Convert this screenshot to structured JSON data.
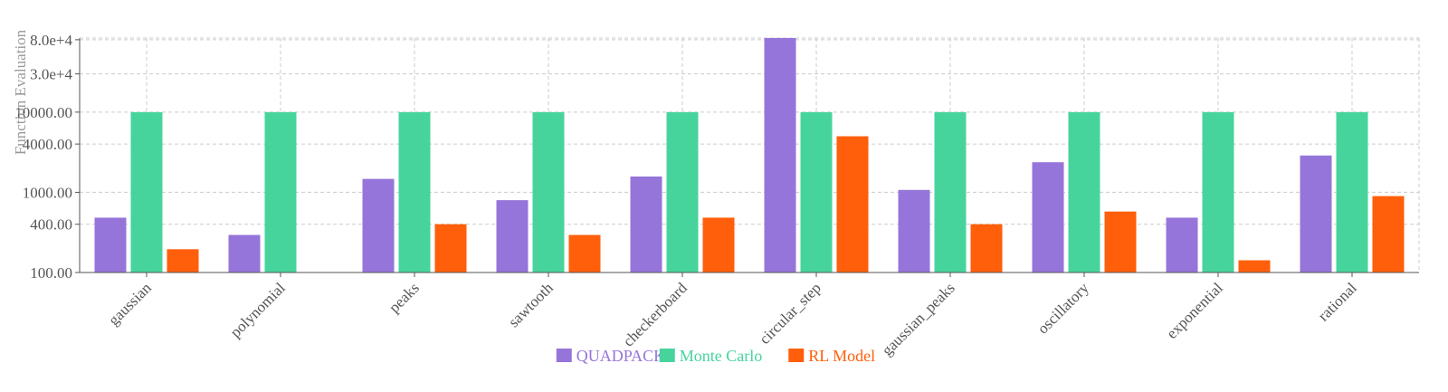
{
  "chart_data": {
    "type": "bar",
    "title": "",
    "xlabel": "",
    "ylabel": "Function Evaluation",
    "y_scale": "log",
    "ylim": [
      100,
      84000
    ],
    "y_ticks": [
      100,
      400,
      1000,
      4000,
      10000,
      30000,
      80000
    ],
    "y_tick_labels": [
      "100.00",
      "400.00",
      "1000.00",
      "4000.00",
      "10000.00",
      "3.0e+4",
      "8.0e+4"
    ],
    "grid": true,
    "legend_position": "bottom-center",
    "categories": [
      "gaussian",
      "polynomial",
      "peaks",
      "sawtooth",
      "checkerboard",
      "circular_step",
      "gaussian_peaks",
      "oscillatory",
      "exponential",
      "rational"
    ],
    "series": [
      {
        "name": "QUADPACK",
        "color": "#9575d9",
        "values": [
          483,
          294,
          1470,
          798,
          1575,
          84000,
          1071,
          2373,
          483,
          2877
        ]
      },
      {
        "name": "Monte Carlo",
        "color": "#47d49c",
        "values": [
          10000,
          10000,
          10000,
          10000,
          10000,
          10000,
          10000,
          10000,
          10000,
          10000
        ]
      },
      {
        "name": "RL Model",
        "color": "#ff5f0a",
        "values": [
          195,
          null,
          400,
          294,
          483,
          5000,
          400,
          576,
          142,
          897
        ]
      }
    ]
  }
}
